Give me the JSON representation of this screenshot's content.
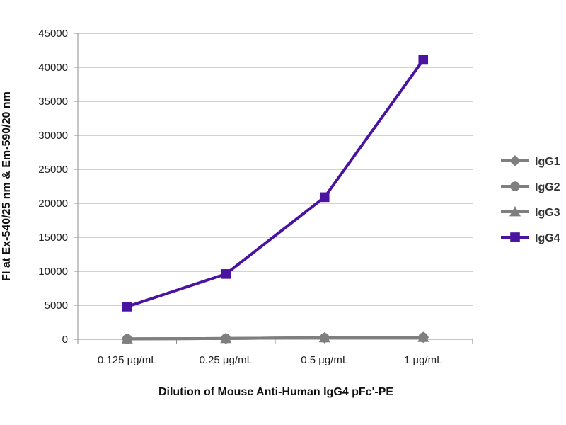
{
  "chart_data": {
    "type": "line",
    "categories": [
      "0.125 µg/mL",
      "0.25 µg/mL",
      "0.5 µg/mL",
      "1 µg/mL"
    ],
    "series": [
      {
        "name": "IgG1",
        "values": [
          60,
          120,
          220,
          280
        ],
        "color": "#7f7f7f",
        "marker": "diamond"
      },
      {
        "name": "IgG2",
        "values": [
          60,
          120,
          220,
          280
        ],
        "color": "#7f7f7f",
        "marker": "circle"
      },
      {
        "name": "IgG3",
        "values": [
          60,
          120,
          220,
          280
        ],
        "color": "#7f7f7f",
        "marker": "triangle"
      },
      {
        "name": "IgG4",
        "values": [
          4800,
          9600,
          20900,
          41100
        ],
        "color": "#4b14a0",
        "marker": "square"
      }
    ],
    "ylim": [
      0,
      45000
    ],
    "yticks": [
      "0",
      "5000",
      "10000",
      "15000",
      "20000",
      "25000",
      "30000",
      "35000",
      "40000",
      "45000"
    ],
    "xlabel": "Dilution of Mouse Anti-Human IgG4 pFc'-PE",
    "ylabel": "FI at Ex-540/25 nm & Em-590/20 nm",
    "grid": true,
    "legend_position": "right"
  }
}
